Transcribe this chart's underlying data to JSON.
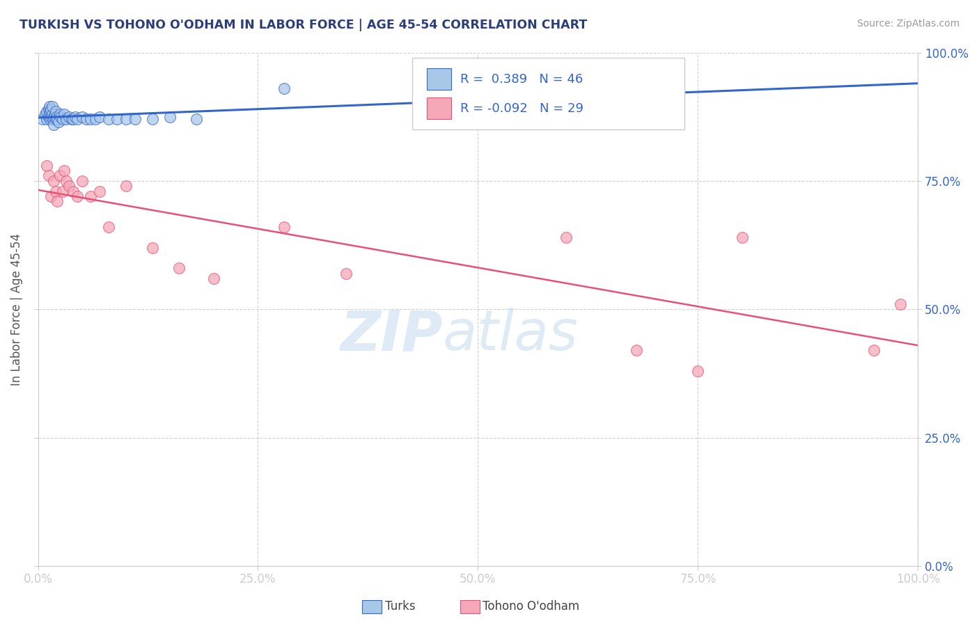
{
  "title": "TURKISH VS TOHONO O'ODHAM IN LABOR FORCE | AGE 45-54 CORRELATION CHART",
  "source_text": "Source: ZipAtlas.com",
  "ylabel": "In Labor Force | Age 45-54",
  "xlim": [
    0.0,
    1.0
  ],
  "ylim": [
    0.0,
    1.0
  ],
  "xticks": [
    0.0,
    0.25,
    0.5,
    0.75,
    1.0
  ],
  "xticklabels": [
    "0.0%",
    "25.0%",
    "50.0%",
    "75.0%",
    "100.0%"
  ],
  "yticks": [
    0.0,
    0.25,
    0.5,
    0.75,
    1.0
  ],
  "yticklabels": [
    "0.0%",
    "25.0%",
    "50.0%",
    "75.0%",
    "100.0%"
  ],
  "blue_color": "#a8c8e8",
  "pink_color": "#f4a8b8",
  "blue_line_color": "#3366cc",
  "pink_line_color": "#e8507a",
  "R_blue": 0.389,
  "N_blue": 46,
  "R_pink": -0.092,
  "N_pink": 29,
  "legend_label_blue": "Turks",
  "legend_label_pink": "Tohono O'odham",
  "watermark_zip": "ZIP",
  "watermark_atlas": "atlas",
  "title_color": "#2c3e7a",
  "axis_label_color": "#555555",
  "tick_label_color": "#3366cc",
  "legend_R_color": "#3366cc",
  "blue_x": [
    0.005,
    0.008,
    0.01,
    0.01,
    0.012,
    0.012,
    0.013,
    0.013,
    0.014,
    0.014,
    0.015,
    0.015,
    0.016,
    0.016,
    0.017,
    0.018,
    0.018,
    0.019,
    0.02,
    0.02,
    0.021,
    0.022,
    0.023,
    0.025,
    0.026,
    0.028,
    0.03,
    0.032,
    0.035,
    0.038,
    0.04,
    0.042,
    0.045,
    0.05,
    0.055,
    0.06,
    0.065,
    0.07,
    0.08,
    0.09,
    0.1,
    0.11,
    0.13,
    0.15,
    0.18,
    0.28
  ],
  "blue_y": [
    0.87,
    0.88,
    0.87,
    0.885,
    0.875,
    0.89,
    0.88,
    0.895,
    0.885,
    0.87,
    0.875,
    0.89,
    0.88,
    0.895,
    0.87,
    0.875,
    0.86,
    0.88,
    0.87,
    0.885,
    0.875,
    0.87,
    0.865,
    0.88,
    0.875,
    0.87,
    0.88,
    0.87,
    0.875,
    0.87,
    0.87,
    0.875,
    0.87,
    0.875,
    0.87,
    0.87,
    0.87,
    0.875,
    0.87,
    0.87,
    0.87,
    0.87,
    0.87,
    0.875,
    0.87,
    0.93
  ],
  "pink_x": [
    0.01,
    0.012,
    0.015,
    0.018,
    0.02,
    0.022,
    0.025,
    0.028,
    0.03,
    0.032,
    0.035,
    0.04,
    0.045,
    0.05,
    0.06,
    0.07,
    0.08,
    0.1,
    0.13,
    0.16,
    0.2,
    0.28,
    0.35,
    0.6,
    0.68,
    0.75,
    0.8,
    0.95,
    0.98
  ],
  "pink_y": [
    0.78,
    0.76,
    0.72,
    0.75,
    0.73,
    0.71,
    0.76,
    0.73,
    0.77,
    0.75,
    0.74,
    0.73,
    0.72,
    0.75,
    0.72,
    0.73,
    0.66,
    0.74,
    0.62,
    0.58,
    0.56,
    0.66,
    0.57,
    0.64,
    0.42,
    0.38,
    0.64,
    0.42,
    0.51
  ]
}
